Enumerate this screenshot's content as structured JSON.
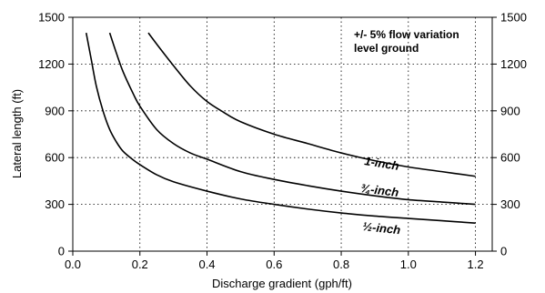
{
  "chart_data": {
    "type": "line",
    "title": "",
    "xlabel": "Discharge gradient (gph/ft)",
    "ylabel": "Lateral length (ft)",
    "xlim": [
      0.0,
      1.25
    ],
    "ylim": [
      0,
      1500
    ],
    "x_ticks": [
      "0.0",
      "0.2",
      "0.4",
      "0.6",
      "0.8",
      "1.0",
      "1.2"
    ],
    "y_ticks": [
      "0",
      "300",
      "600",
      "900",
      "1200",
      "1500"
    ],
    "x_tick_values": [
      0.0,
      0.2,
      0.4,
      0.6,
      0.8,
      1.0,
      1.2
    ],
    "y_tick_values": [
      0,
      300,
      600,
      900,
      1200,
      1500
    ],
    "grid": true,
    "right_axis_mirrored": true,
    "annotations": [
      "+/- 5% flow variation",
      "level ground"
    ],
    "series": [
      {
        "name": "1-inch",
        "x": [
          0.225,
          0.26,
          0.3,
          0.35,
          0.4,
          0.45,
          0.5,
          0.6,
          0.7,
          0.8,
          0.9,
          1.0,
          1.1,
          1.2
        ],
        "y": [
          1400,
          1300,
          1190,
          1060,
          960,
          890,
          830,
          750,
          690,
          630,
          580,
          540,
          510,
          480
        ]
      },
      {
        "name": "¾-inch",
        "x": [
          0.11,
          0.13,
          0.15,
          0.18,
          0.2,
          0.25,
          0.3,
          0.35,
          0.4,
          0.5,
          0.6,
          0.7,
          0.8,
          0.9,
          1.0,
          1.1,
          1.2
        ],
        "y": [
          1400,
          1270,
          1150,
          1010,
          930,
          780,
          690,
          630,
          590,
          510,
          460,
          420,
          385,
          355,
          330,
          315,
          300
        ]
      },
      {
        "name": "½-inch",
        "x": [
          0.04,
          0.055,
          0.07,
          0.09,
          0.11,
          0.13,
          0.15,
          0.18,
          0.2,
          0.25,
          0.3,
          0.4,
          0.5,
          0.6,
          0.7,
          0.8,
          0.9,
          1.0,
          1.1,
          1.2
        ],
        "y": [
          1400,
          1230,
          1060,
          900,
          780,
          700,
          640,
          585,
          555,
          490,
          445,
          385,
          335,
          300,
          270,
          245,
          225,
          210,
          195,
          180
        ]
      }
    ]
  },
  "labels": {
    "annotation_line1": "+/- 5% flow variation",
    "annotation_line2": "level ground",
    "series_1inch": "1-inch",
    "series_34inch": "¾-inch",
    "series_12inch": "½-inch"
  }
}
